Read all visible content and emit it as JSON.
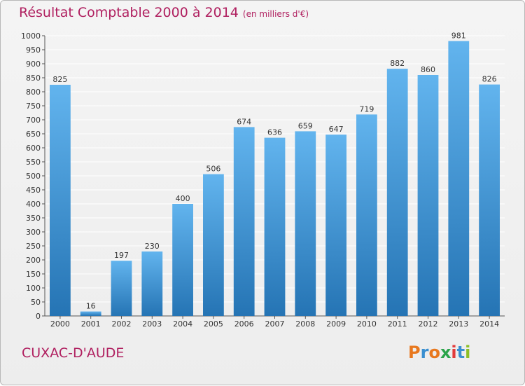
{
  "header": {
    "title": "Résultat Comptable 2000 à 2014",
    "subtitle": "(en milliers d'€)"
  },
  "footer": {
    "city": "CUXAC-D'AUDE",
    "logo": "Proxiti"
  },
  "colors": {
    "title": "#b02060",
    "bar_top": "#62b4ee",
    "bar_bottom": "#2574b4",
    "grid": "#ffffff",
    "background": "#ededed"
  },
  "chart_data": {
    "type": "bar",
    "title": "Résultat Comptable 2000 à 2014",
    "subtitle": "(en milliers d'€)",
    "xlabel": "",
    "ylabel": "",
    "ylim": [
      0,
      1000
    ],
    "ytick_step": 50,
    "grid": true,
    "categories": [
      "2000",
      "2001",
      "2002",
      "2003",
      "2004",
      "2005",
      "2006",
      "2007",
      "2008",
      "2009",
      "2010",
      "2011",
      "2012",
      "2013",
      "2014"
    ],
    "values": [
      825,
      16,
      197,
      230,
      400,
      506,
      674,
      636,
      659,
      647,
      719,
      882,
      860,
      981,
      826
    ]
  }
}
